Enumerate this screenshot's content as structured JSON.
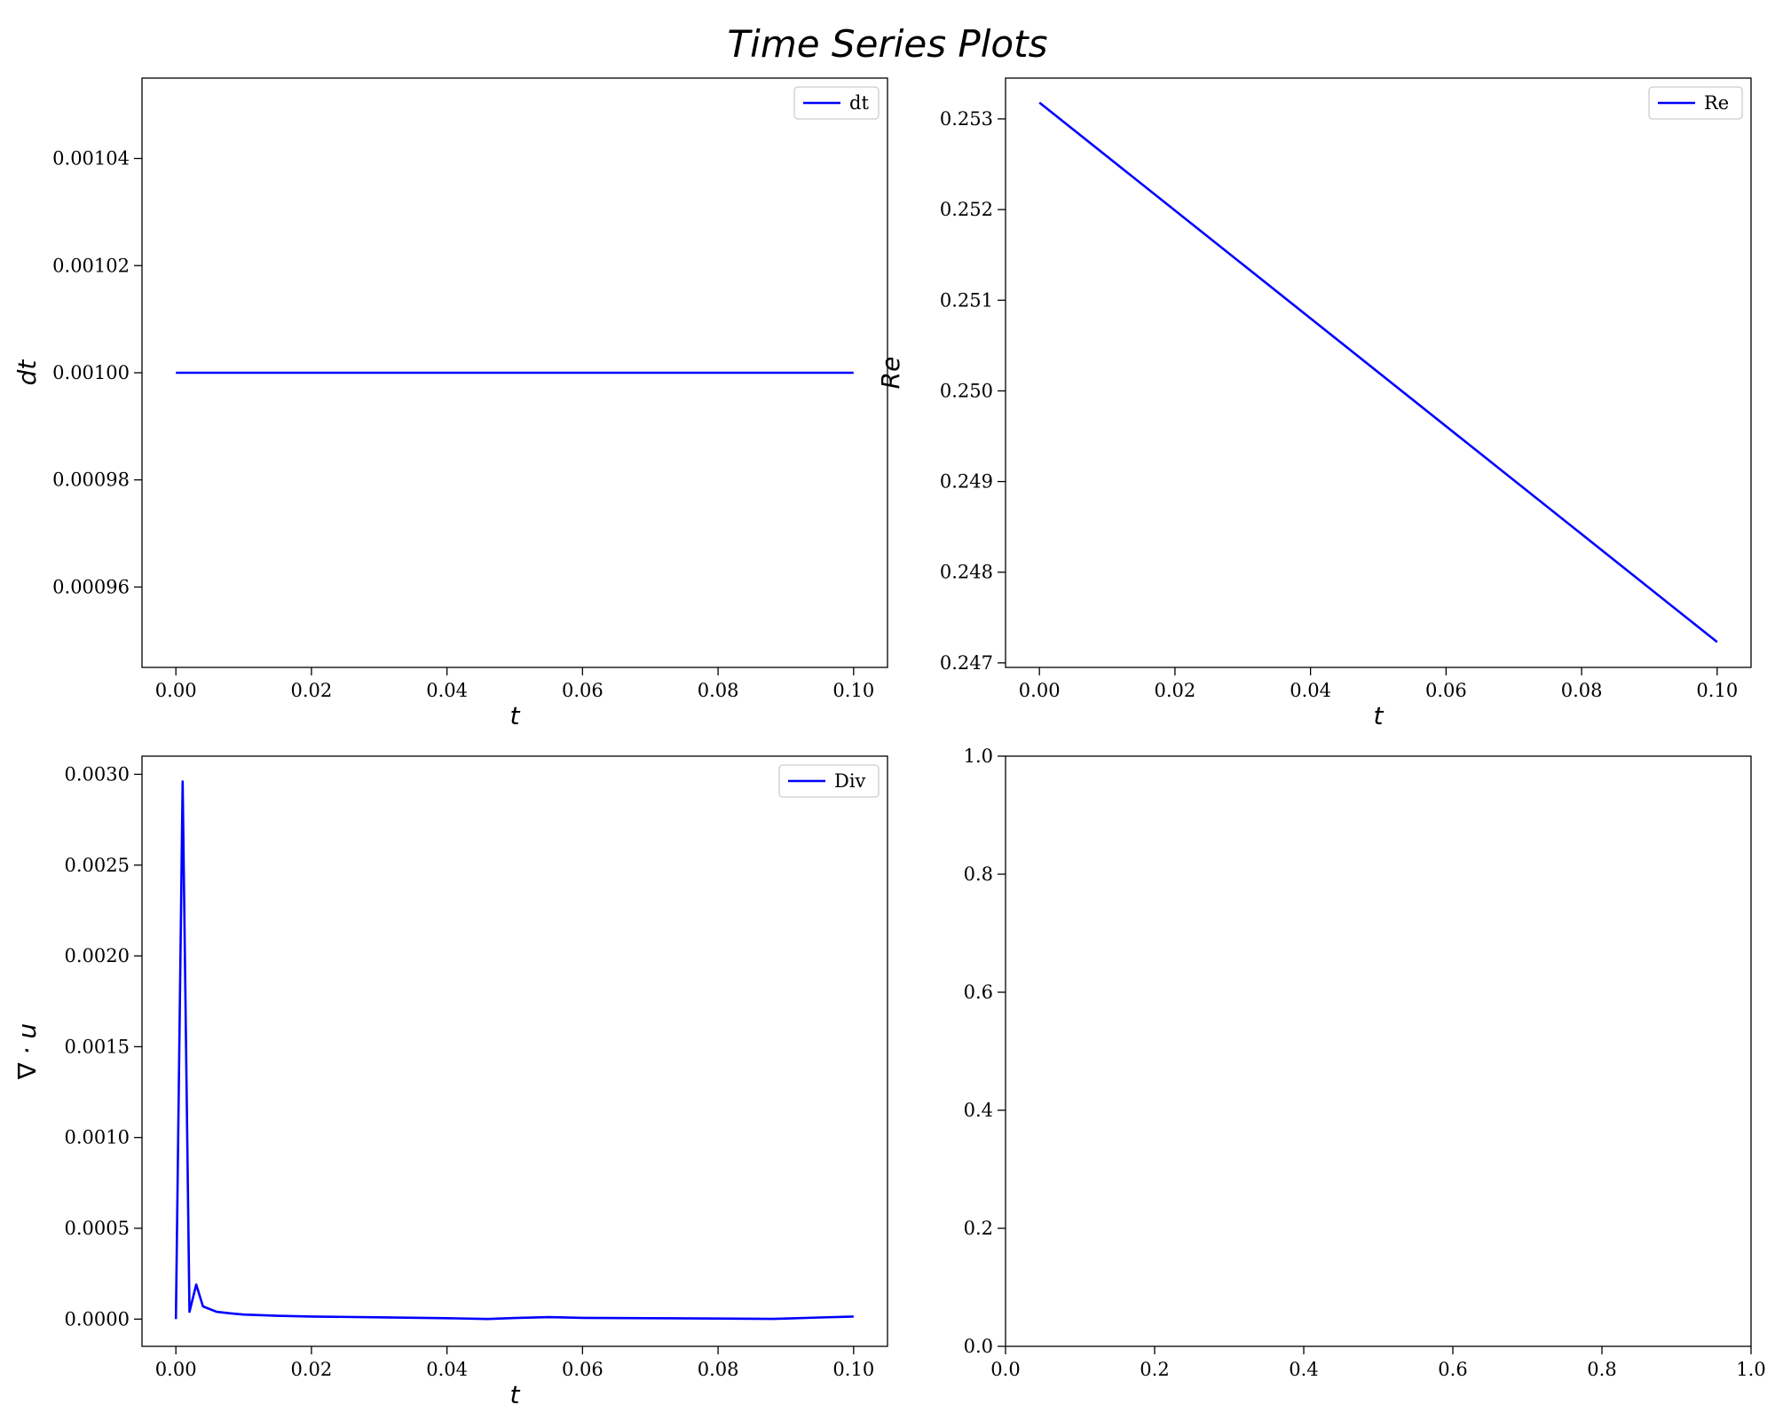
{
  "figure": {
    "title": "Time Series Plots"
  },
  "chart_data": [
    {
      "type": "line",
      "xlabel": "t",
      "ylabel": "dt",
      "xlim": [
        -0.005,
        0.105
      ],
      "ylim": [
        0.000945,
        0.001055
      ],
      "xticks": [
        0.0,
        0.02,
        0.04,
        0.06,
        0.08,
        0.1
      ],
      "xtick_labels": [
        "0.00",
        "0.02",
        "0.04",
        "0.06",
        "0.08",
        "0.10"
      ],
      "yticks": [
        0.00096,
        0.00098,
        0.001,
        0.00102,
        0.00104
      ],
      "ytick_labels": [
        "0.00096",
        "0.00098",
        "0.00100",
        "0.00102",
        "0.00104"
      ],
      "legend": "top-right",
      "grid": false,
      "series": [
        {
          "name": "dt",
          "color": "#0000ff",
          "x": [
            0.0,
            0.1
          ],
          "y": [
            0.001,
            0.001
          ]
        }
      ]
    },
    {
      "type": "line",
      "xlabel": "t",
      "ylabel": "Re",
      "xlim": [
        -0.005,
        0.105
      ],
      "ylim": [
        0.24695,
        0.25345
      ],
      "xticks": [
        0.0,
        0.02,
        0.04,
        0.06,
        0.08,
        0.1
      ],
      "xtick_labels": [
        "0.00",
        "0.02",
        "0.04",
        "0.06",
        "0.08",
        "0.10"
      ],
      "yticks": [
        0.247,
        0.248,
        0.249,
        0.25,
        0.251,
        0.252,
        0.253
      ],
      "ytick_labels": [
        "0.247",
        "0.248",
        "0.249",
        "0.250",
        "0.251",
        "0.252",
        "0.253"
      ],
      "legend": "top-right",
      "grid": false,
      "series": [
        {
          "name": "Re",
          "color": "#0000ff",
          "x": [
            0.0,
            0.1
          ],
          "y": [
            0.25318,
            0.24723
          ]
        }
      ]
    },
    {
      "type": "line",
      "xlabel": "t",
      "ylabel": "∇ · u",
      "xlim": [
        -0.005,
        0.105
      ],
      "ylim": [
        -0.00015,
        0.0031
      ],
      "xticks": [
        0.0,
        0.02,
        0.04,
        0.06,
        0.08,
        0.1
      ],
      "xtick_labels": [
        "0.00",
        "0.02",
        "0.04",
        "0.06",
        "0.08",
        "0.10"
      ],
      "yticks": [
        0.0,
        0.0005,
        0.001,
        0.0015,
        0.002,
        0.0025,
        0.003
      ],
      "ytick_labels": [
        "0.0000",
        "0.0005",
        "0.0010",
        "0.0015",
        "0.0020",
        "0.0025",
        "0.0030"
      ],
      "legend": "top-right",
      "grid": false,
      "series": [
        {
          "name": "Div",
          "color": "#0000ff",
          "x": [
            0.0,
            0.001,
            0.002,
            0.003,
            0.004,
            0.006,
            0.008,
            0.01,
            0.015,
            0.02,
            0.03,
            0.04,
            0.046,
            0.05,
            0.055,
            0.06,
            0.07,
            0.08,
            0.088,
            0.09,
            0.095,
            0.1
          ],
          "y": [
            0.0,
            0.00296,
            4e-05,
            0.00019,
            7e-05,
            4e-05,
            3.2e-05,
            2.5e-05,
            1.8e-05,
            1.4e-05,
            1e-05,
            5e-06,
            5e-07,
            6e-06,
            1.1e-05,
            7e-06,
            5e-06,
            3e-06,
            1e-06,
            3e-06,
            9e-06,
            1.4e-05
          ]
        }
      ]
    },
    {
      "type": "line",
      "xlabel": "",
      "ylabel": "",
      "xlim": [
        0.0,
        1.0
      ],
      "ylim": [
        0.0,
        1.0
      ],
      "xticks": [
        0.0,
        0.2,
        0.4,
        0.6,
        0.8,
        1.0
      ],
      "xtick_labels": [
        "0.0",
        "0.2",
        "0.4",
        "0.6",
        "0.8",
        "1.0"
      ],
      "yticks": [
        0.0,
        0.2,
        0.4,
        0.6,
        0.8,
        1.0
      ],
      "ytick_labels": [
        "0.0",
        "0.2",
        "0.4",
        "0.6",
        "0.8",
        "1.0"
      ],
      "grid": false,
      "series": []
    }
  ]
}
